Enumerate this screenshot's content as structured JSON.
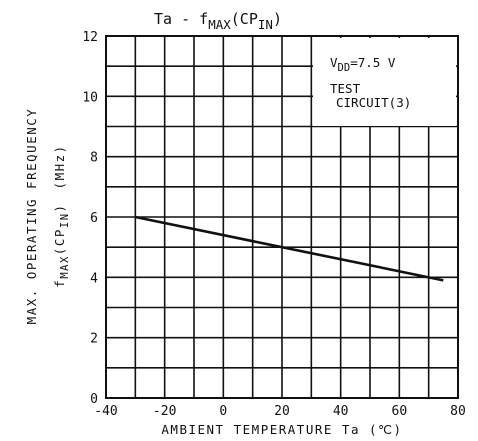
{
  "chart_data": {
    "type": "line",
    "title": {
      "main": "Ta - f",
      "sub1": "MAX",
      "mid": "(CP",
      "sub2": "IN",
      "end": ")"
    },
    "xlabel": "AMBIENT TEMPERATURE Ta (℃)",
    "ylabel": {
      "line1": "MAX. OPERATING FREQUENCY",
      "line2_main": "f",
      "line2_sub1": "MAX",
      "line2_mid": "(CP",
      "line2_sub2": "IN",
      "line2_end": ")",
      "unit": "(MHz)"
    },
    "xlim": [
      -40,
      80
    ],
    "ylim": [
      0,
      12
    ],
    "x_ticks": [
      "-40",
      "-20",
      "0",
      "20",
      "40",
      "60",
      "80"
    ],
    "y_ticks": [
      "0",
      "2",
      "4",
      "6",
      "8",
      "10",
      "12"
    ],
    "grid": true,
    "annotations": {
      "vdd": {
        "main": "V",
        "sub": "DD",
        "rest": "=7.5 V"
      },
      "test_line1": "TEST",
      "test_line2": "CIRCUIT(3)"
    },
    "series": [
      {
        "x": [
          -30,
          75
        ],
        "y": [
          6.0,
          3.9
        ]
      }
    ],
    "colors": {
      "line": "#111111",
      "grid": "#111111",
      "background": "#ffffff"
    }
  }
}
